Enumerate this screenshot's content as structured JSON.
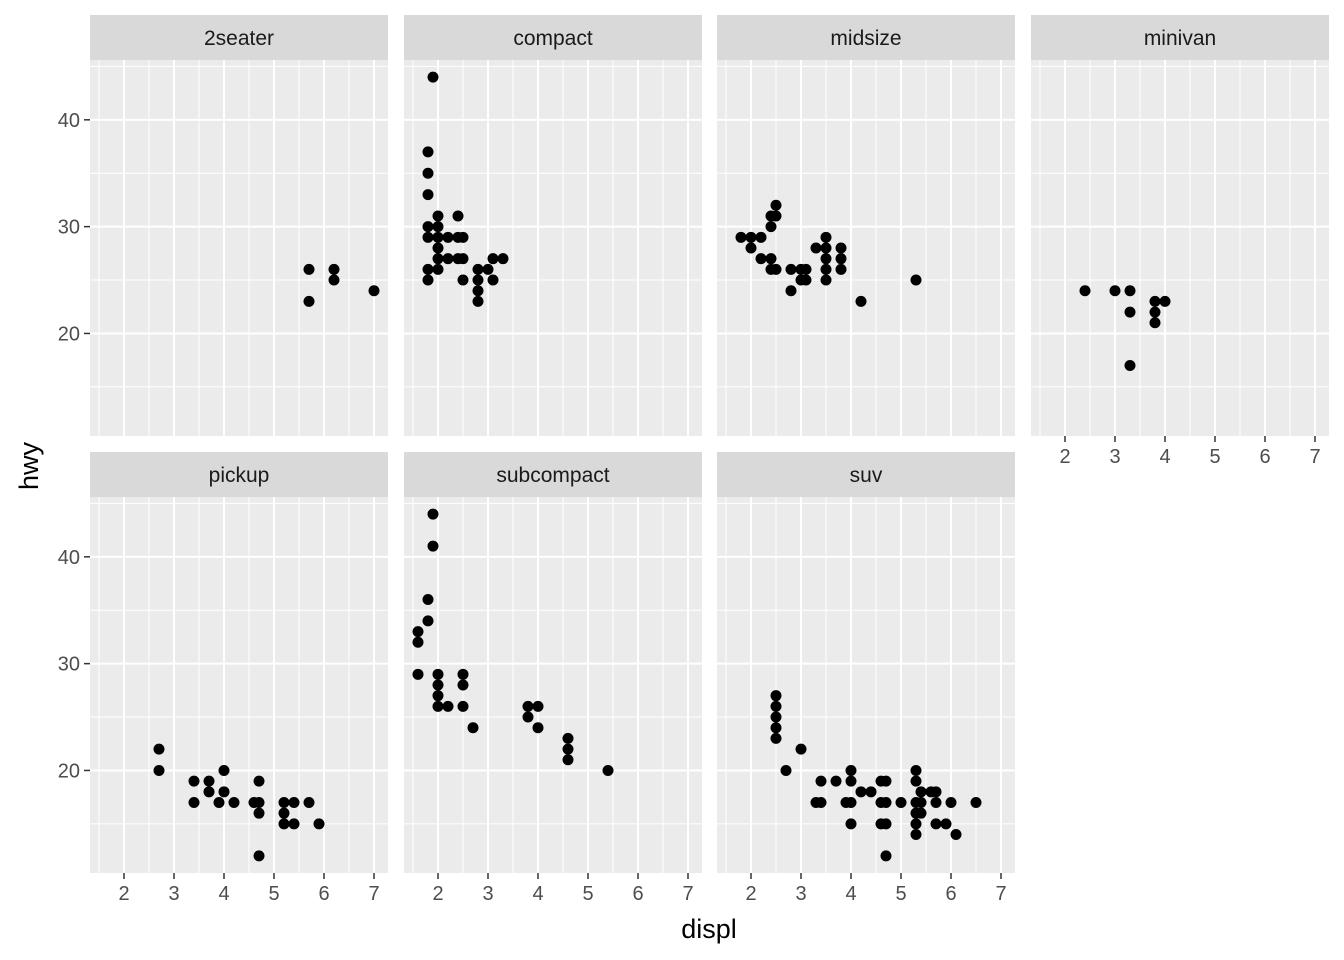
{
  "chart_data": {
    "type": "scatter",
    "xlabel": "displ",
    "ylabel": "hwy",
    "xlim": [
      1.32,
      7.28
    ],
    "ylim": [
      10.4,
      45.6
    ],
    "x_ticks": [
      2,
      3,
      4,
      5,
      6,
      7
    ],
    "x_tick_labels": [
      "2",
      "3",
      "4",
      "5",
      "6",
      "7"
    ],
    "y_ticks": [
      20,
      30,
      40
    ],
    "y_tick_labels": [
      "20",
      "30",
      "40"
    ],
    "grid": true,
    "facet_rows": 2,
    "facet_cols": 4,
    "facets": [
      {
        "name": "2seater",
        "points": [
          [
            5.7,
            26
          ],
          [
            5.7,
            23
          ],
          [
            6.2,
            26
          ],
          [
            6.2,
            25
          ],
          [
            7.0,
            24
          ]
        ]
      },
      {
        "name": "compact",
        "points": [
          [
            1.9,
            44
          ],
          [
            1.8,
            37
          ],
          [
            1.8,
            35
          ],
          [
            1.8,
            33
          ],
          [
            1.8,
            30
          ],
          [
            1.8,
            29
          ],
          [
            1.8,
            26
          ],
          [
            1.8,
            25
          ],
          [
            2.0,
            31
          ],
          [
            2.0,
            30
          ],
          [
            2.0,
            29
          ],
          [
            2.0,
            28
          ],
          [
            2.0,
            27
          ],
          [
            2.0,
            26
          ],
          [
            2.2,
            29
          ],
          [
            2.2,
            27
          ],
          [
            2.4,
            31
          ],
          [
            2.4,
            29
          ],
          [
            2.4,
            27
          ],
          [
            2.5,
            29
          ],
          [
            2.5,
            27
          ],
          [
            2.5,
            25
          ],
          [
            2.8,
            26
          ],
          [
            2.8,
            25
          ],
          [
            2.8,
            24
          ],
          [
            2.8,
            23
          ],
          [
            3.0,
            26
          ],
          [
            3.1,
            27
          ],
          [
            3.1,
            25
          ],
          [
            3.3,
            27
          ]
        ]
      },
      {
        "name": "midsize",
        "points": [
          [
            1.8,
            29
          ],
          [
            2.0,
            29
          ],
          [
            2.0,
            28
          ],
          [
            2.2,
            29
          ],
          [
            2.2,
            27
          ],
          [
            2.4,
            31
          ],
          [
            2.4,
            30
          ],
          [
            2.4,
            27
          ],
          [
            2.4,
            26
          ],
          [
            2.5,
            32
          ],
          [
            2.5,
            31
          ],
          [
            2.5,
            26
          ],
          [
            2.8,
            26
          ],
          [
            2.8,
            24
          ],
          [
            3.0,
            26
          ],
          [
            3.0,
            25
          ],
          [
            3.1,
            26
          ],
          [
            3.1,
            25
          ],
          [
            3.3,
            28
          ],
          [
            3.5,
            29
          ],
          [
            3.5,
            28
          ],
          [
            3.5,
            27
          ],
          [
            3.5,
            26
          ],
          [
            3.5,
            25
          ],
          [
            3.8,
            28
          ],
          [
            3.8,
            27
          ],
          [
            3.8,
            26
          ],
          [
            4.2,
            23
          ],
          [
            5.3,
            25
          ]
        ]
      },
      {
        "name": "minivan",
        "points": [
          [
            2.4,
            24
          ],
          [
            3.0,
            24
          ],
          [
            3.3,
            24
          ],
          [
            3.3,
            22
          ],
          [
            3.3,
            17
          ],
          [
            3.8,
            23
          ],
          [
            3.8,
            22
          ],
          [
            3.8,
            21
          ],
          [
            4.0,
            23
          ]
        ]
      },
      {
        "name": "pickup",
        "points": [
          [
            2.7,
            22
          ],
          [
            2.7,
            20
          ],
          [
            3.4,
            19
          ],
          [
            3.4,
            17
          ],
          [
            3.7,
            19
          ],
          [
            3.7,
            18
          ],
          [
            3.9,
            17
          ],
          [
            4.0,
            20
          ],
          [
            4.0,
            18
          ],
          [
            4.2,
            17
          ],
          [
            4.6,
            17
          ],
          [
            4.7,
            19
          ],
          [
            4.7,
            17
          ],
          [
            4.7,
            16
          ],
          [
            4.7,
            12
          ],
          [
            5.2,
            17
          ],
          [
            5.2,
            16
          ],
          [
            5.2,
            15
          ],
          [
            5.4,
            17
          ],
          [
            5.4,
            15
          ],
          [
            5.7,
            17
          ],
          [
            5.9,
            15
          ]
        ]
      },
      {
        "name": "subcompact",
        "points": [
          [
            1.6,
            33
          ],
          [
            1.6,
            32
          ],
          [
            1.6,
            29
          ],
          [
            1.8,
            36
          ],
          [
            1.8,
            34
          ],
          [
            1.9,
            44
          ],
          [
            1.9,
            41
          ],
          [
            2.0,
            29
          ],
          [
            2.0,
            28
          ],
          [
            2.0,
            27
          ],
          [
            2.0,
            26
          ],
          [
            2.2,
            26
          ],
          [
            2.5,
            29
          ],
          [
            2.5,
            28
          ],
          [
            2.5,
            26
          ],
          [
            2.7,
            24
          ],
          [
            3.8,
            26
          ],
          [
            3.8,
            25
          ],
          [
            4.0,
            26
          ],
          [
            4.0,
            24
          ],
          [
            4.6,
            23
          ],
          [
            4.6,
            22
          ],
          [
            4.6,
            21
          ],
          [
            5.4,
            20
          ]
        ]
      },
      {
        "name": "suv",
        "points": [
          [
            2.5,
            27
          ],
          [
            2.5,
            26
          ],
          [
            2.5,
            25
          ],
          [
            2.5,
            24
          ],
          [
            2.5,
            23
          ],
          [
            2.7,
            20
          ],
          [
            3.0,
            22
          ],
          [
            3.3,
            17
          ],
          [
            3.4,
            19
          ],
          [
            3.4,
            17
          ],
          [
            3.7,
            19
          ],
          [
            3.9,
            17
          ],
          [
            4.0,
            20
          ],
          [
            4.0,
            19
          ],
          [
            4.0,
            17
          ],
          [
            4.0,
            15
          ],
          [
            4.2,
            18
          ],
          [
            4.4,
            18
          ],
          [
            4.6,
            19
          ],
          [
            4.6,
            17
          ],
          [
            4.6,
            15
          ],
          [
            4.7,
            19
          ],
          [
            4.7,
            17
          ],
          [
            4.7,
            15
          ],
          [
            4.7,
            12
          ],
          [
            5.0,
            17
          ],
          [
            5.3,
            20
          ],
          [
            5.3,
            19
          ],
          [
            5.3,
            17
          ],
          [
            5.3,
            16
          ],
          [
            5.3,
            15
          ],
          [
            5.3,
            14
          ],
          [
            5.4,
            18
          ],
          [
            5.4,
            17
          ],
          [
            5.4,
            16
          ],
          [
            5.6,
            18
          ],
          [
            5.7,
            18
          ],
          [
            5.7,
            17
          ],
          [
            5.7,
            15
          ],
          [
            5.9,
            15
          ],
          [
            6.0,
            17
          ],
          [
            6.1,
            14
          ],
          [
            6.5,
            17
          ]
        ]
      }
    ]
  }
}
